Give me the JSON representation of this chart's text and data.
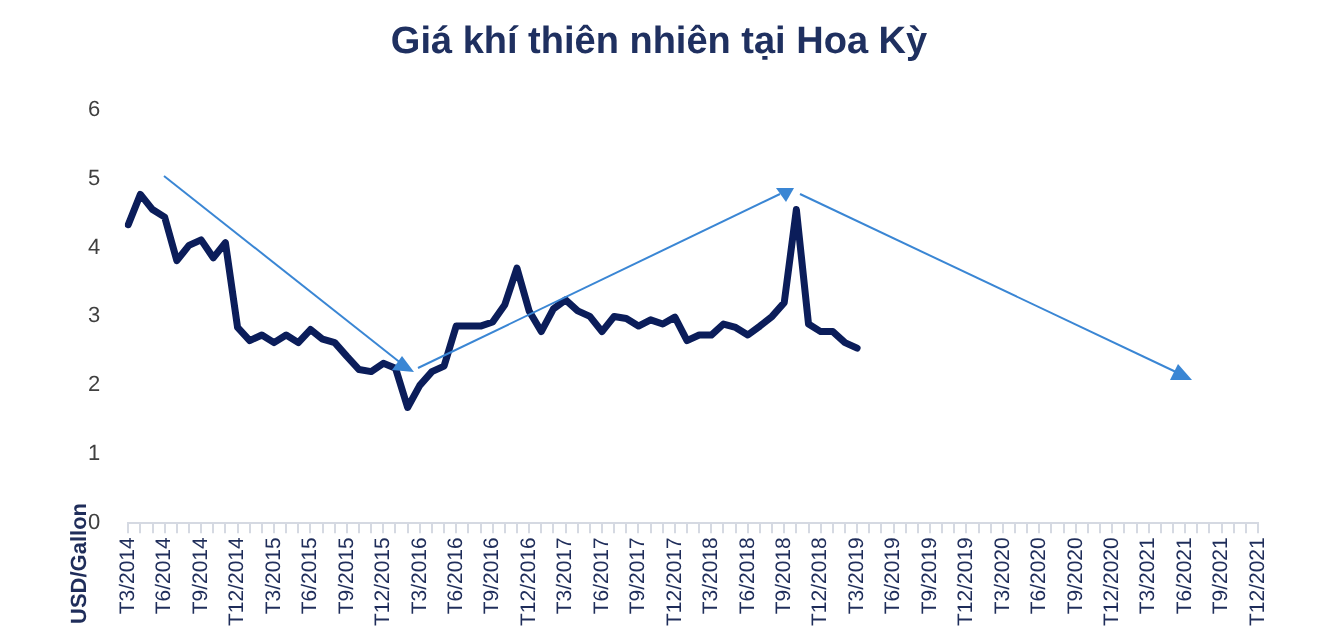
{
  "chart_data": {
    "type": "line",
    "title": "Giá khí thiên nhiên tại Hoa Kỳ",
    "ylabel": "USD/Gallon",
    "categories": [
      "T3/2014",
      null,
      null,
      "T6/2014",
      null,
      null,
      "T9/2014",
      null,
      null,
      "T12/2014",
      null,
      null,
      "T3/2015",
      null,
      null,
      "T6/2015",
      null,
      null,
      "T9/2015",
      null,
      null,
      "T12/2015",
      null,
      null,
      "T3/2016",
      null,
      null,
      "T6/2016",
      null,
      null,
      "T9/2016",
      null,
      null,
      "T12/2016",
      null,
      null,
      "T3/2017",
      null,
      null,
      "T6/2017",
      null,
      null,
      "T9/2017",
      null,
      null,
      "T12/2017",
      null,
      null,
      "T3/2018",
      null,
      null,
      "T6/2018",
      null,
      null,
      "T9/2018",
      null,
      null,
      "T12/2018",
      null,
      null,
      "T3/2019",
      null,
      null,
      "T6/2019",
      null,
      null,
      "T9/2019",
      null,
      null,
      "T12/2019",
      null,
      null,
      "T3/2020",
      null,
      null,
      "T6/2020",
      null,
      null,
      "T9/2020",
      null,
      null,
      "T12/2020",
      null,
      null,
      "T3/2021",
      null,
      null,
      "T6/2021",
      null,
      null,
      "T9/2021",
      null,
      null,
      "T12/2021"
    ],
    "series": [
      {
        "color": "#0b1d5a",
        "values": [
          4.33,
          4.77,
          4.55,
          4.44,
          3.81,
          4.03,
          4.11,
          3.85,
          4.07,
          2.84,
          2.65,
          2.73,
          2.62,
          2.73,
          2.62,
          2.81,
          2.67,
          2.62,
          2.42,
          2.23,
          2.2,
          2.32,
          2.25,
          1.68,
          2.0,
          2.2,
          2.28,
          2.86,
          2.86,
          2.86,
          2.92,
          3.17,
          3.7,
          3.08,
          2.78,
          3.11,
          3.24,
          3.08,
          3.0,
          2.78,
          3.0,
          2.97,
          2.86,
          2.95,
          2.89,
          2.99,
          2.65,
          2.73,
          2.73,
          2.89,
          2.84,
          2.73,
          2.86,
          3.0,
          3.2,
          4.55,
          2.89,
          2.78,
          2.78,
          2.62,
          2.54,
          null,
          null,
          null,
          null,
          null,
          null,
          null,
          null,
          null,
          null,
          null,
          null,
          null,
          null,
          null,
          null,
          null,
          null,
          null,
          null,
          null,
          null,
          null,
          null,
          null,
          null,
          null,
          null,
          null,
          null,
          null,
          null,
          null
        ]
      }
    ],
    "ylim": [
      0,
      6
    ],
    "yticks": [
      0,
      1,
      2,
      3,
      4,
      5,
      6
    ],
    "grid": false,
    "legend": false,
    "marker": "none",
    "line_style": "solid"
  }
}
